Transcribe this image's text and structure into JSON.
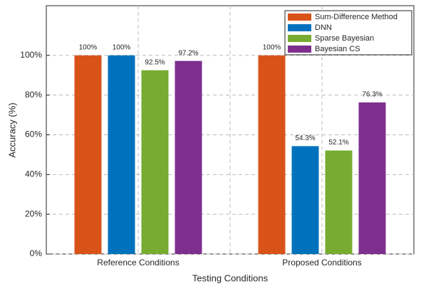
{
  "chart_data": {
    "type": "bar",
    "xlabel": "Testing Conditions",
    "ylabel": "Accuracy (%)",
    "categories": [
      "Reference Conditions",
      "Proposed Conditions"
    ],
    "series": [
      {
        "name": "Sum-Difference Method",
        "color": "#d95319",
        "values": [
          100,
          100
        ],
        "value_labels": [
          "100%",
          "100%"
        ]
      },
      {
        "name": "DNN",
        "color": "#0072bd",
        "values": [
          100,
          54.3
        ],
        "value_labels": [
          "100%",
          "54.3%"
        ]
      },
      {
        "name": "Sparse Bayesian",
        "color": "#77ac30",
        "values": [
          92.5,
          52.1
        ],
        "value_labels": [
          "92.5%",
          "52.1%"
        ]
      },
      {
        "name": "Bayesian CS",
        "color": "#7e2f8e",
        "values": [
          97.2,
          76.3
        ],
        "value_labels": [
          "97.2%",
          "76.3%"
        ]
      }
    ],
    "ylim": [
      0,
      125
    ],
    "yticks": [
      {
        "value": 0,
        "label": "0%"
      },
      {
        "value": 20,
        "label": "20%"
      },
      {
        "value": 40,
        "label": "40%"
      },
      {
        "value": 60,
        "label": "60%"
      },
      {
        "value": 80,
        "label": "80%"
      },
      {
        "value": 100,
        "label": "100%"
      }
    ],
    "grid": true,
    "legend": "upper right"
  }
}
